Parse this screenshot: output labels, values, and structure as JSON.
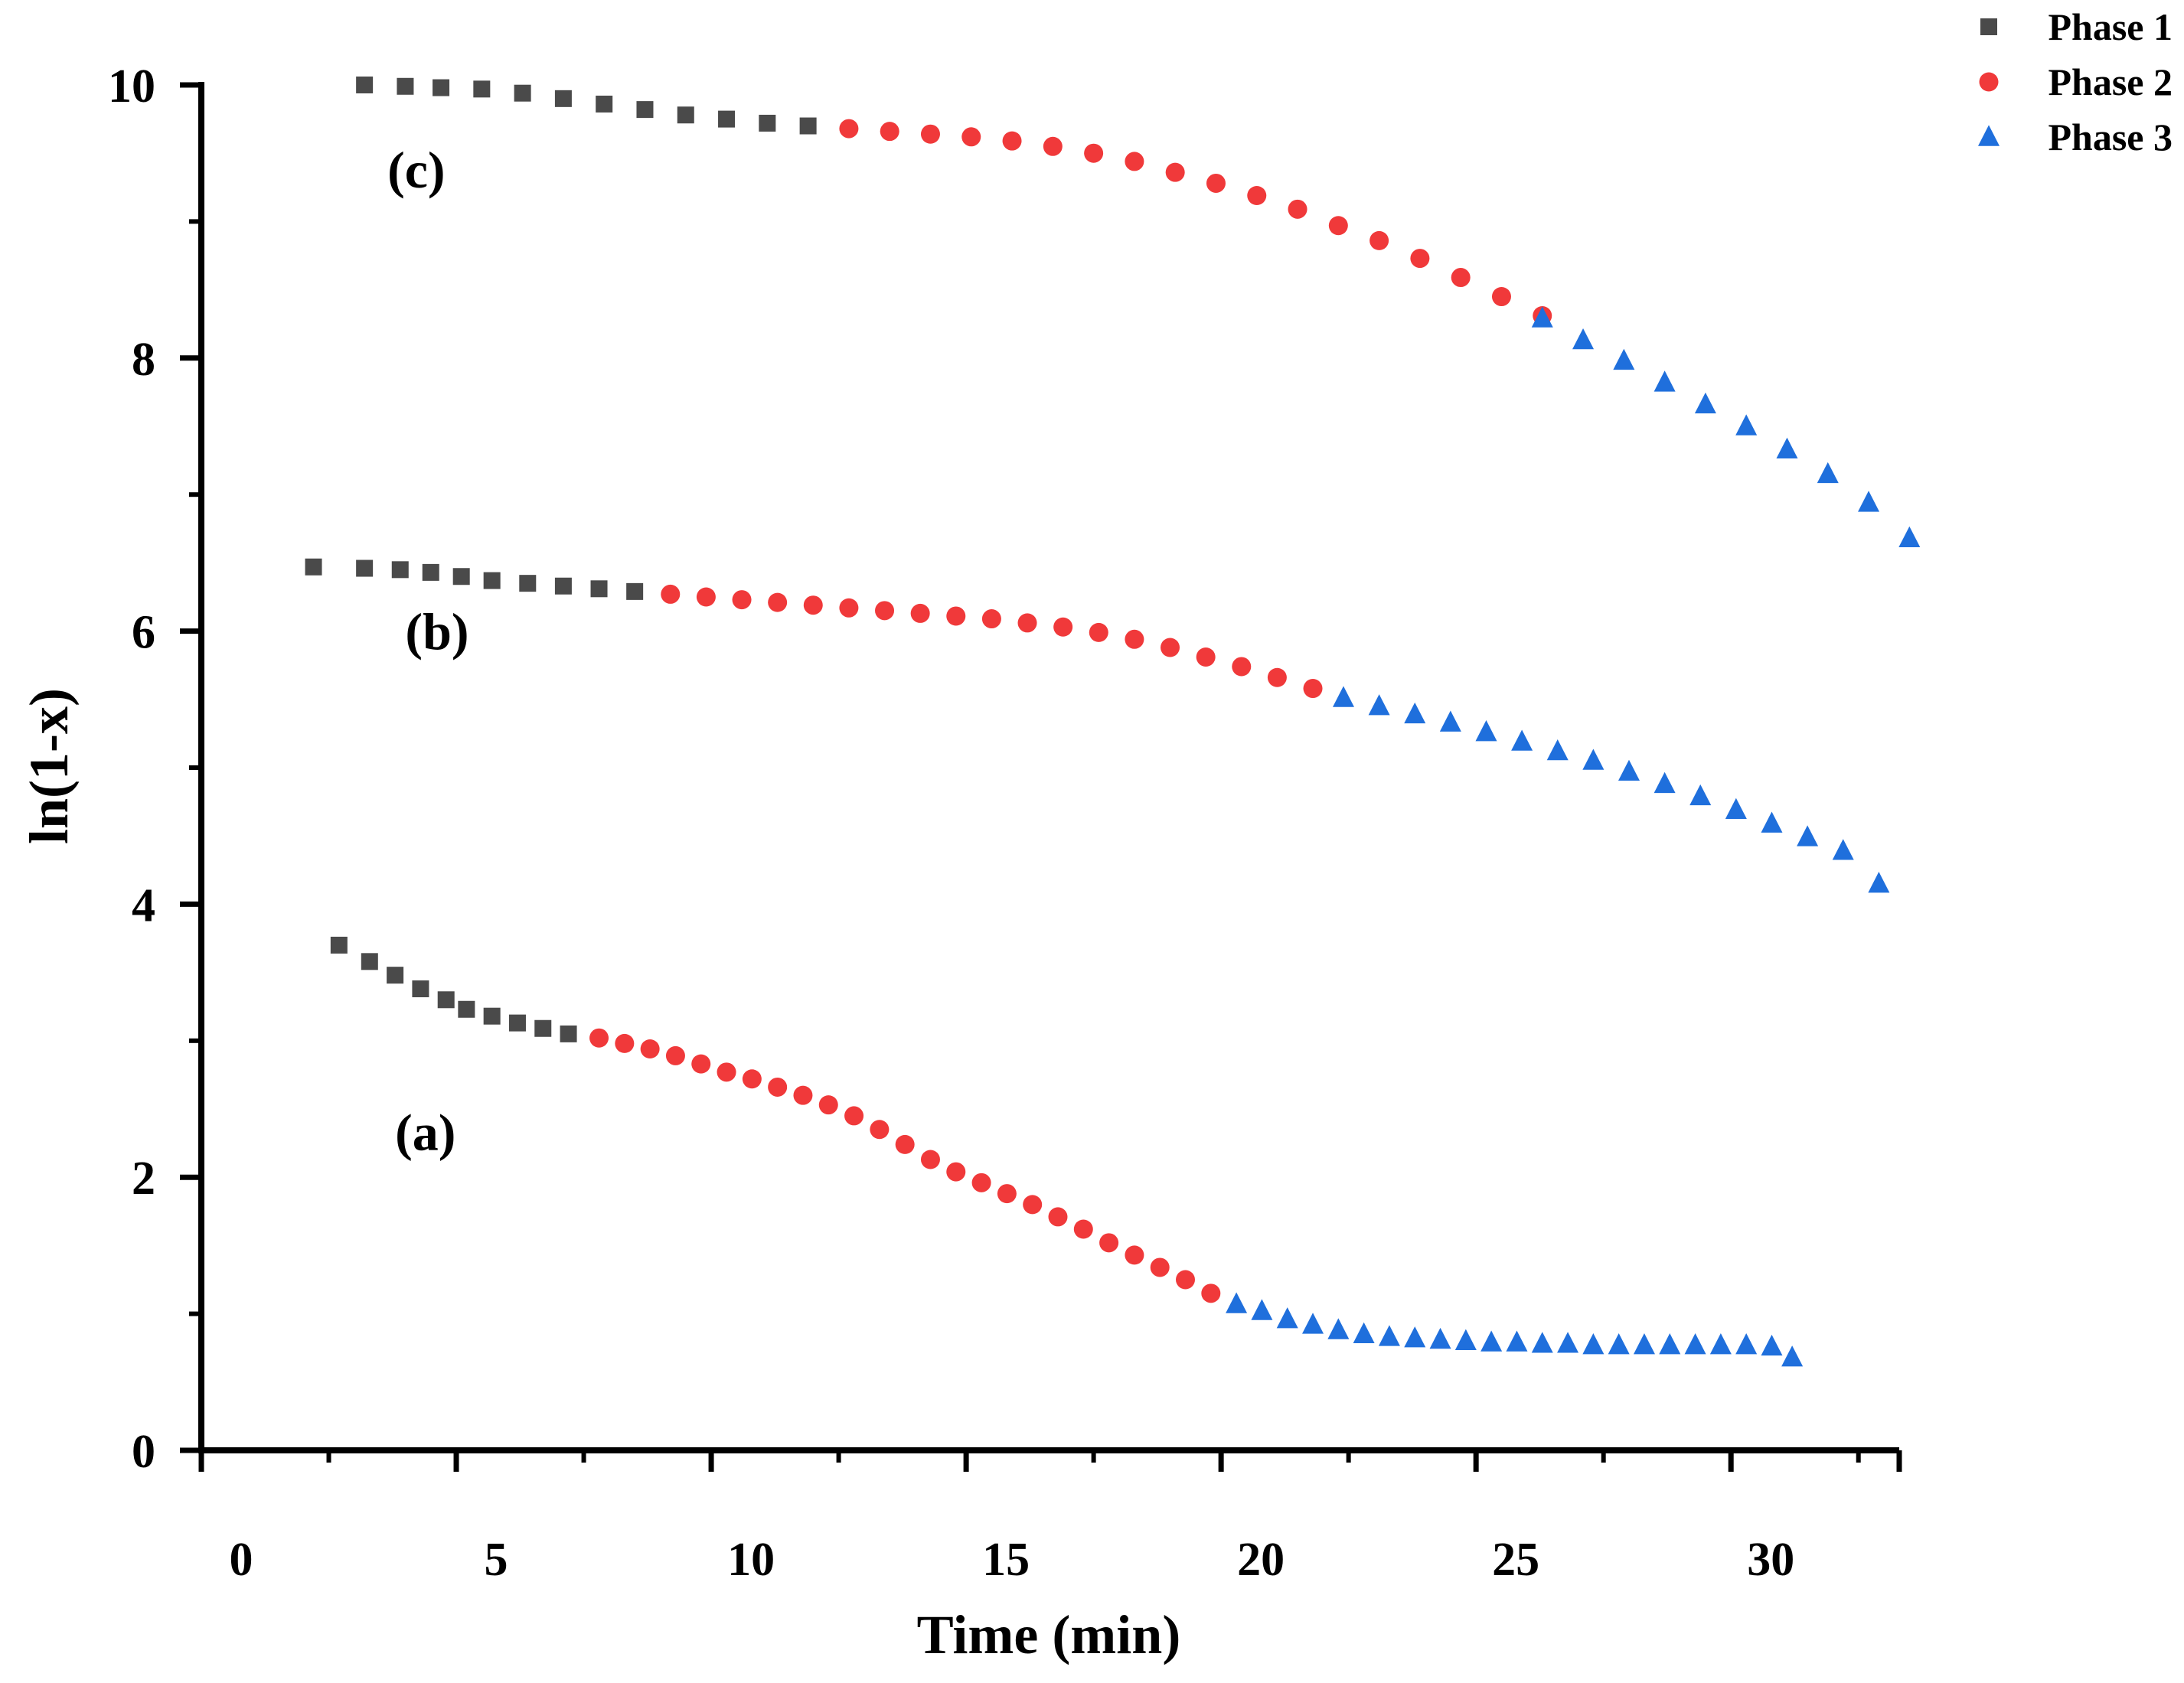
{
  "chart_data": {
    "type": "scatter",
    "title": "",
    "xlabel": "Time (min)",
    "ylabel": "ln(1-x)",
    "xlim": [
      0,
      33.3
    ],
    "ylim": [
      0,
      10
    ],
    "x_ticks": [
      {
        "value": 0,
        "label": "0"
      },
      {
        "value": 5,
        "label": "5"
      },
      {
        "value": 10,
        "label": "10"
      },
      {
        "value": 15,
        "label": "15"
      },
      {
        "value": 20,
        "label": "20"
      },
      {
        "value": 25,
        "label": "25"
      },
      {
        "value": 30,
        "label": "30"
      }
    ],
    "y_ticks": [
      {
        "value": 0,
        "label": "0"
      },
      {
        "value": 2,
        "label": "2"
      },
      {
        "value": 4,
        "label": "4"
      },
      {
        "value": 6,
        "label": "6"
      },
      {
        "value": 8,
        "label": "8"
      },
      {
        "value": 10,
        "label": "10"
      }
    ],
    "legend": {
      "position": "top-right",
      "entries": [
        {
          "name": "Phase 1",
          "marker": "square",
          "color": "#4a4a4a"
        },
        {
          "name": "Phase 2",
          "marker": "circle",
          "color": "#f0393a"
        },
        {
          "name": "Phase 3",
          "marker": "triangle",
          "color": "#1f6fdc"
        }
      ]
    },
    "annotations": [
      {
        "text": "(a)",
        "x": 3.8,
        "y": 2.2
      },
      {
        "text": "(b)",
        "x": 4.0,
        "y": 5.87
      },
      {
        "text": "(c)",
        "x": 3.65,
        "y": 9.25
      }
    ],
    "curves": [
      {
        "name": "(a)",
        "series": [
          {
            "phase": "Phase 1",
            "points": [
              [
                2.7,
                3.7
              ],
              [
                3.3,
                3.58
              ],
              [
                3.8,
                3.48
              ],
              [
                4.3,
                3.38
              ],
              [
                4.8,
                3.3
              ],
              [
                5.2,
                3.23
              ],
              [
                5.7,
                3.18
              ],
              [
                6.2,
                3.13
              ],
              [
                6.7,
                3.09
              ],
              [
                7.2,
                3.05
              ]
            ]
          },
          {
            "phase": "Phase 2",
            "points": [
              [
                7.8,
                3.02
              ],
              [
                8.3,
                2.98
              ],
              [
                8.8,
                2.94
              ],
              [
                9.3,
                2.89
              ],
              [
                9.8,
                2.83
              ],
              [
                10.3,
                2.77
              ],
              [
                10.8,
                2.72
              ],
              [
                11.3,
                2.66
              ],
              [
                11.8,
                2.6
              ],
              [
                12.3,
                2.53
              ],
              [
                12.8,
                2.45
              ],
              [
                13.3,
                2.35
              ],
              [
                13.8,
                2.24
              ],
              [
                14.3,
                2.13
              ],
              [
                14.8,
                2.04
              ],
              [
                15.3,
                1.96
              ],
              [
                15.8,
                1.88
              ],
              [
                16.3,
                1.8
              ],
              [
                16.8,
                1.71
              ],
              [
                17.3,
                1.62
              ],
              [
                17.8,
                1.52
              ],
              [
                18.3,
                1.43
              ],
              [
                18.8,
                1.34
              ],
              [
                19.3,
                1.25
              ],
              [
                19.8,
                1.15
              ]
            ]
          },
          {
            "phase": "Phase 3",
            "points": [
              [
                20.3,
                1.07
              ],
              [
                20.8,
                1.02
              ],
              [
                21.3,
                0.96
              ],
              [
                21.8,
                0.92
              ],
              [
                22.3,
                0.88
              ],
              [
                22.8,
                0.85
              ],
              [
                23.3,
                0.83
              ],
              [
                23.8,
                0.82
              ],
              [
                24.3,
                0.81
              ],
              [
                24.8,
                0.8
              ],
              [
                25.3,
                0.79
              ],
              [
                25.8,
                0.79
              ],
              [
                26.3,
                0.78
              ],
              [
                26.8,
                0.78
              ],
              [
                27.3,
                0.77
              ],
              [
                27.8,
                0.77
              ],
              [
                28.3,
                0.77
              ],
              [
                28.8,
                0.77
              ],
              [
                29.3,
                0.77
              ],
              [
                29.8,
                0.77
              ],
              [
                30.3,
                0.77
              ],
              [
                30.8,
                0.76
              ],
              [
                31.2,
                0.68
              ]
            ]
          }
        ]
      },
      {
        "name": "(b)",
        "series": [
          {
            "phase": "Phase 1",
            "points": [
              [
                2.2,
                6.47
              ],
              [
                3.2,
                6.46
              ],
              [
                3.9,
                6.45
              ],
              [
                4.5,
                6.43
              ],
              [
                5.1,
                6.4
              ],
              [
                5.7,
                6.37
              ],
              [
                6.4,
                6.35
              ],
              [
                7.1,
                6.33
              ],
              [
                7.8,
                6.31
              ],
              [
                8.5,
                6.29
              ]
            ]
          },
          {
            "phase": "Phase 2",
            "points": [
              [
                9.2,
                6.27
              ],
              [
                9.9,
                6.25
              ],
              [
                10.6,
                6.23
              ],
              [
                11.3,
                6.21
              ],
              [
                12.0,
                6.19
              ],
              [
                12.7,
                6.17
              ],
              [
                13.4,
                6.15
              ],
              [
                14.1,
                6.13
              ],
              [
                14.8,
                6.11
              ],
              [
                15.5,
                6.09
              ],
              [
                16.2,
                6.06
              ],
              [
                16.9,
                6.03
              ],
              [
                17.6,
                5.99
              ],
              [
                18.3,
                5.94
              ],
              [
                19.0,
                5.88
              ],
              [
                19.7,
                5.81
              ],
              [
                20.4,
                5.74
              ],
              [
                21.1,
                5.66
              ],
              [
                21.8,
                5.58
              ]
            ]
          },
          {
            "phase": "Phase 3",
            "points": [
              [
                22.4,
                5.51
              ],
              [
                23.1,
                5.45
              ],
              [
                23.8,
                5.39
              ],
              [
                24.5,
                5.33
              ],
              [
                25.2,
                5.26
              ],
              [
                25.9,
                5.19
              ],
              [
                26.6,
                5.12
              ],
              [
                27.3,
                5.05
              ],
              [
                28.0,
                4.97
              ],
              [
                28.7,
                4.88
              ],
              [
                29.4,
                4.79
              ],
              [
                30.1,
                4.69
              ],
              [
                30.8,
                4.59
              ],
              [
                31.5,
                4.49
              ],
              [
                32.2,
                4.39
              ],
              [
                32.9,
                4.15
              ]
            ]
          }
        ]
      },
      {
        "name": "(c)",
        "series": [
          {
            "phase": "Phase 1",
            "points": [
              [
                3.2,
                10.0
              ],
              [
                4.0,
                9.99
              ],
              [
                4.7,
                9.98
              ],
              [
                5.5,
                9.97
              ],
              [
                6.3,
                9.94
              ],
              [
                7.1,
                9.9
              ],
              [
                7.9,
                9.86
              ],
              [
                8.7,
                9.82
              ],
              [
                9.5,
                9.78
              ],
              [
                10.3,
                9.75
              ],
              [
                11.1,
                9.72
              ],
              [
                11.9,
                9.7
              ]
            ]
          },
          {
            "phase": "Phase 2",
            "points": [
              [
                12.7,
                9.68
              ],
              [
                13.5,
                9.66
              ],
              [
                14.3,
                9.64
              ],
              [
                15.1,
                9.62
              ],
              [
                15.9,
                9.59
              ],
              [
                16.7,
                9.55
              ],
              [
                17.5,
                9.5
              ],
              [
                18.3,
                9.44
              ],
              [
                19.1,
                9.36
              ],
              [
                19.9,
                9.28
              ],
              [
                20.7,
                9.19
              ],
              [
                21.5,
                9.09
              ],
              [
                22.3,
                8.97
              ],
              [
                23.1,
                8.86
              ],
              [
                23.9,
                8.73
              ],
              [
                24.7,
                8.59
              ],
              [
                25.5,
                8.45
              ],
              [
                26.3,
                8.31
              ]
            ]
          },
          {
            "phase": "Phase 3",
            "points": [
              [
                26.3,
                8.29
              ],
              [
                27.1,
                8.13
              ],
              [
                27.9,
                7.98
              ],
              [
                28.7,
                7.82
              ],
              [
                29.5,
                7.66
              ],
              [
                30.3,
                7.5
              ],
              [
                31.1,
                7.33
              ],
              [
                31.9,
                7.15
              ],
              [
                32.7,
                6.94
              ],
              [
                33.5,
                6.68
              ]
            ]
          }
        ]
      }
    ]
  }
}
